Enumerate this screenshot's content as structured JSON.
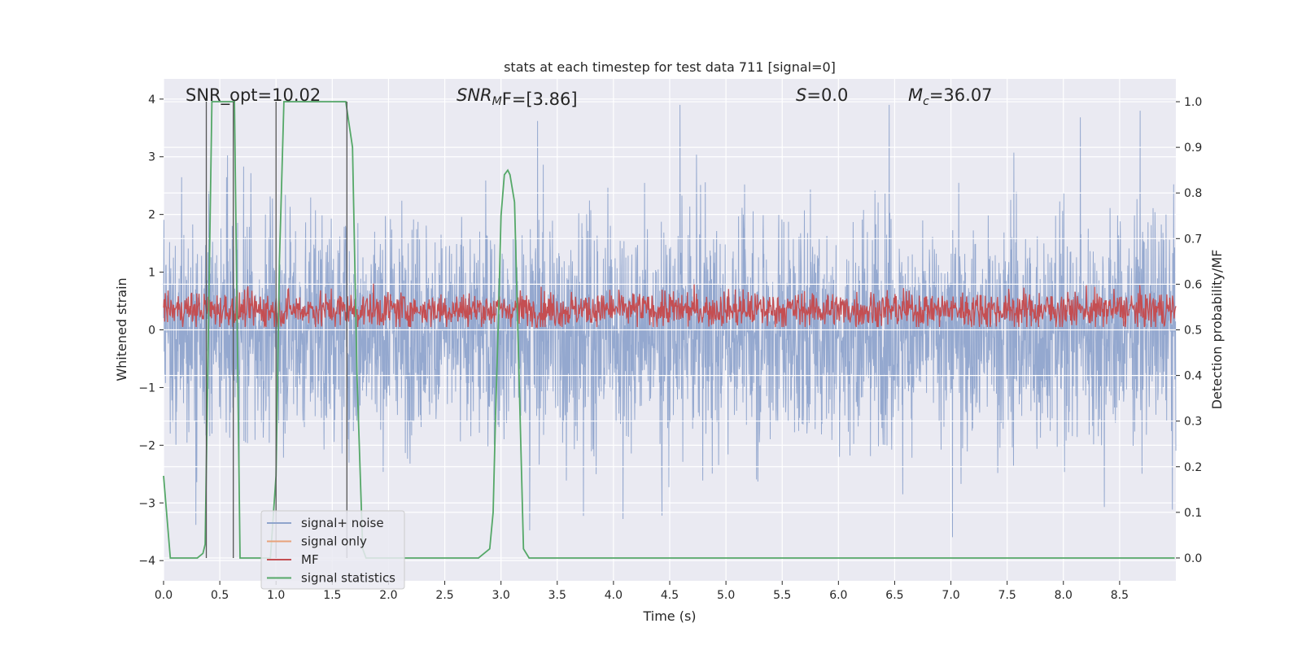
{
  "chart_data": {
    "type": "line",
    "title": "stats at each timestep for test data 711 [signal=0]",
    "xlabel": "Time (s)",
    "ylabel": "Whitened strain",
    "y2label": "Detection probability/MF",
    "xlim": [
      0.0,
      9.0
    ],
    "ylim": [
      -4.35,
      4.35
    ],
    "y2lim": [
      -0.05,
      1.05
    ],
    "xticks": [
      0.0,
      0.5,
      1.0,
      1.5,
      2.0,
      2.5,
      3.0,
      3.5,
      4.0,
      4.5,
      5.0,
      5.5,
      6.0,
      6.5,
      7.0,
      7.5,
      8.0,
      8.5
    ],
    "xtick_labels": [
      "0.0",
      "0.5",
      "1.0",
      "1.5",
      "2.0",
      "2.5",
      "3.0",
      "3.5",
      "4.0",
      "4.5",
      "5.0",
      "5.5",
      "6.0",
      "6.5",
      "7.0",
      "7.5",
      "8.0",
      "8.5"
    ],
    "yticks": [
      4,
      3,
      2,
      1,
      0,
      -1,
      -2,
      -3,
      -4
    ],
    "ytick_labels": [
      "4",
      "3",
      "2",
      "1",
      "0",
      "−1",
      "−2",
      "−3",
      "−4"
    ],
    "y2ticks": [
      1.0,
      0.9,
      0.8,
      0.7,
      0.6,
      0.5,
      0.4,
      0.3,
      0.2,
      0.1,
      0.0
    ],
    "y2tick_labels": [
      "1.0",
      "0.9",
      "0.8",
      "0.7",
      "0.6",
      "0.5",
      "0.4",
      "0.3",
      "0.2",
      "0.1",
      "0.0"
    ],
    "grid": true,
    "legend_position": "lower-left",
    "annotations": {
      "snr_opt": "SNR_opt=10.02",
      "snr_mf_main": "SNR",
      "snr_mf_sub": "M",
      "snr_mf_rest": "F=[3.86]",
      "s_main": "S",
      "s_rest": "=0.0",
      "mc_main": "M",
      "mc_sub": "c",
      "mc_rest": "=36.07"
    },
    "vertical_markers_x": [
      0.38,
      0.62,
      1.0,
      1.63
    ],
    "series": [
      {
        "name": "signal+ noise",
        "color": "#8fa4cc",
        "axis": "left",
        "description_values": {
          "duration_s": 9.0,
          "typical_amplitude": 1.6,
          "peak_max": 3.9,
          "peak_min": -4.0
        }
      },
      {
        "name": "signal only",
        "color": "#e8a27a",
        "axis": "left",
        "values_constant": 0.0
      },
      {
        "name": "MF",
        "color": "#c44e52",
        "axis": "left",
        "description_values": {
          "min": 0.05,
          "max": 0.95,
          "mean": 0.35
        }
      },
      {
        "name": "signal statistics",
        "color": "#55a868",
        "axis": "right",
        "x": [
          0.0,
          0.06,
          0.1,
          0.2,
          0.3,
          0.35,
          0.37,
          0.43,
          0.6,
          0.63,
          0.68,
          0.72,
          0.95,
          1.0,
          1.03,
          1.07,
          1.12,
          1.5,
          1.62,
          1.68,
          1.72,
          1.77,
          1.8,
          1.9,
          2.0,
          2.8,
          2.85,
          2.9,
          2.93,
          2.95,
          2.98,
          3.0,
          3.03,
          3.06,
          3.08,
          3.12,
          3.15,
          3.2,
          3.25,
          8.99
        ],
        "y": [
          0.18,
          0.0,
          0.0,
          0.0,
          0.0,
          0.01,
          0.03,
          1.0,
          1.0,
          1.0,
          0.0,
          0.0,
          0.0,
          0.18,
          0.65,
          1.0,
          1.0,
          1.0,
          1.0,
          0.9,
          0.4,
          0.02,
          0.0,
          0.0,
          0.0,
          0.0,
          0.01,
          0.02,
          0.1,
          0.3,
          0.55,
          0.75,
          0.84,
          0.85,
          0.84,
          0.78,
          0.5,
          0.02,
          0.0,
          0.0
        ]
      }
    ]
  }
}
